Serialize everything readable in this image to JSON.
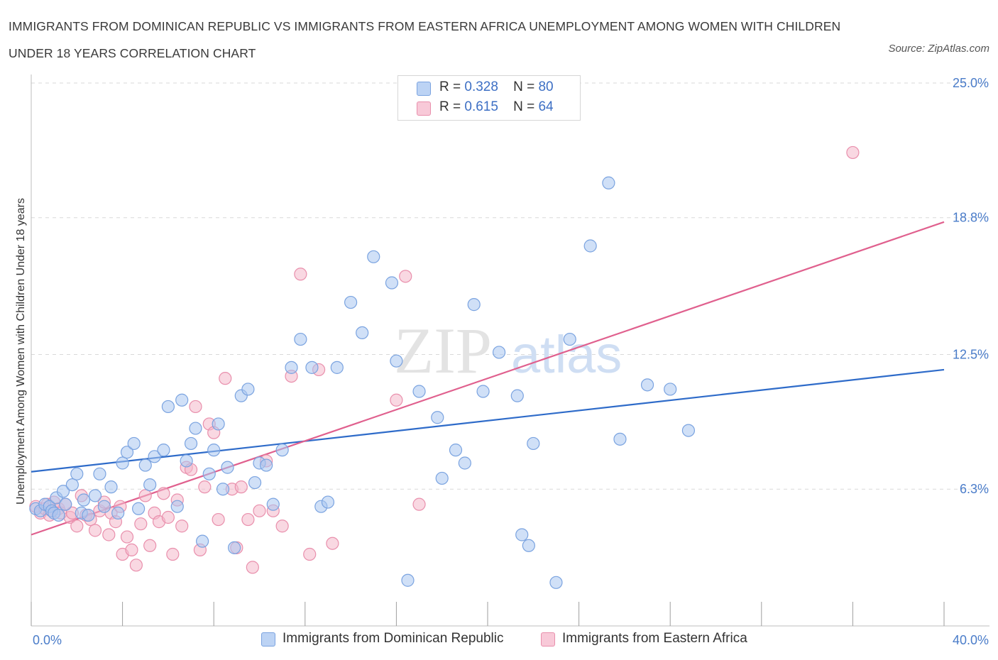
{
  "title": "IMMIGRANTS FROM DOMINICAN REPUBLIC VS IMMIGRANTS FROM EASTERN AFRICA UNEMPLOYMENT AMONG WOMEN WITH CHILDREN UNDER 18 YEARS CORRELATION CHART",
  "source": "Source: ZipAtlas.com",
  "watermark": {
    "zip": "ZIP",
    "atlas": "atlas"
  },
  "legend": {
    "rows": [
      {
        "r_label": "R =",
        "r_value": "0.328",
        "n_label": "N =",
        "n_value": "80"
      },
      {
        "r_label": "R =",
        "r_value": "0.615",
        "n_label": "N =",
        "n_value": "64"
      }
    ]
  },
  "colors": {
    "blue_fill": "#a9c6f0",
    "blue_stroke": "#7aa3e0",
    "blue_line": "#2e6bc9",
    "pink_fill": "#f4b8cb",
    "pink_stroke": "#e98fac",
    "pink_line": "#e0608e",
    "tick_text": "#4a7cc9",
    "grid": "#d9d9d9"
  },
  "chart_data": {
    "type": "scatter",
    "title": "IMMIGRANTS FROM DOMINICAN REPUBLIC VS IMMIGRANTS FROM EASTERN AFRICA UNEMPLOYMENT AMONG WOMEN WITH CHILDREN UNDER 18 YEARS CORRELATION CHART",
    "xlabel": "",
    "ylabel": "Unemployment Among Women with Children Under 18 years",
    "x_unit": "%",
    "y_unit": "%",
    "xlim": [
      0,
      40
    ],
    "ylim": [
      0,
      25
    ],
    "x_tick_labels": [
      "0.0%",
      "40.0%"
    ],
    "y_ticks": [
      6.3,
      12.5,
      18.8,
      25.0
    ],
    "y_tick_labels": [
      "6.3%",
      "12.5%",
      "18.8%",
      "25.0%"
    ],
    "grid": "horizontal dashed",
    "legend_position": "top-center",
    "series": [
      {
        "name": "Immigrants from Dominican Republic",
        "color": "#a9c6f0",
        "R": 0.328,
        "N": 80,
        "trend": {
          "x": [
            0,
            40
          ],
          "y": [
            7.1,
            11.8
          ]
        },
        "points": [
          [
            0.2,
            5.4
          ],
          [
            0.4,
            5.3
          ],
          [
            0.6,
            5.6
          ],
          [
            0.8,
            5.5
          ],
          [
            0.9,
            5.3
          ],
          [
            1.0,
            5.2
          ],
          [
            1.1,
            5.9
          ],
          [
            1.2,
            5.1
          ],
          [
            1.4,
            6.2
          ],
          [
            1.5,
            5.6
          ],
          [
            1.8,
            6.5
          ],
          [
            2.0,
            7.0
          ],
          [
            2.2,
            5.2
          ],
          [
            2.3,
            5.8
          ],
          [
            2.5,
            5.1
          ],
          [
            2.8,
            6.0
          ],
          [
            3.0,
            7.0
          ],
          [
            3.2,
            5.5
          ],
          [
            3.5,
            6.4
          ],
          [
            3.8,
            5.2
          ],
          [
            4.0,
            7.5
          ],
          [
            4.2,
            8.0
          ],
          [
            4.5,
            8.4
          ],
          [
            4.7,
            5.4
          ],
          [
            5.0,
            7.4
          ],
          [
            5.2,
            6.5
          ],
          [
            5.4,
            7.8
          ],
          [
            5.8,
            8.1
          ],
          [
            6.0,
            10.1
          ],
          [
            6.4,
            5.5
          ],
          [
            6.6,
            10.4
          ],
          [
            6.8,
            7.6
          ],
          [
            7.0,
            8.4
          ],
          [
            7.2,
            9.1
          ],
          [
            7.5,
            3.9
          ],
          [
            7.8,
            7.0
          ],
          [
            8.0,
            8.1
          ],
          [
            8.2,
            9.3
          ],
          [
            8.4,
            6.3
          ],
          [
            8.6,
            7.3
          ],
          [
            8.9,
            3.6
          ],
          [
            9.2,
            10.6
          ],
          [
            9.5,
            10.9
          ],
          [
            9.8,
            6.6
          ],
          [
            10.0,
            7.5
          ],
          [
            10.3,
            7.4
          ],
          [
            10.6,
            5.6
          ],
          [
            11.0,
            8.1
          ],
          [
            11.4,
            11.9
          ],
          [
            11.8,
            13.2
          ],
          [
            12.3,
            11.9
          ],
          [
            12.7,
            5.5
          ],
          [
            13.0,
            5.7
          ],
          [
            13.4,
            11.9
          ],
          [
            14.0,
            14.9
          ],
          [
            14.5,
            13.5
          ],
          [
            15.0,
            17.0
          ],
          [
            15.8,
            15.8
          ],
          [
            16.0,
            12.2
          ],
          [
            16.5,
            2.1
          ],
          [
            17.0,
            10.8
          ],
          [
            17.8,
            9.6
          ],
          [
            18.0,
            6.8
          ],
          [
            18.6,
            8.1
          ],
          [
            19.0,
            7.5
          ],
          [
            19.4,
            14.8
          ],
          [
            19.8,
            10.8
          ],
          [
            20.5,
            12.6
          ],
          [
            21.3,
            10.6
          ],
          [
            21.5,
            4.2
          ],
          [
            21.8,
            3.7
          ],
          [
            22.0,
            8.4
          ],
          [
            23.0,
            2.0
          ],
          [
            23.6,
            13.2
          ],
          [
            24.5,
            17.5
          ],
          [
            25.3,
            20.4
          ],
          [
            25.8,
            8.6
          ],
          [
            27.0,
            11.1
          ],
          [
            28.0,
            10.9
          ],
          [
            28.8,
            9.0
          ]
        ]
      },
      {
        "name": "Immigrants from Eastern Africa",
        "color": "#f4b8cb",
        "R": 0.615,
        "N": 64,
        "trend": {
          "x": [
            0,
            40
          ],
          "y": [
            4.2,
            18.6
          ]
        },
        "points": [
          [
            0.2,
            5.5
          ],
          [
            0.4,
            5.2
          ],
          [
            0.6,
            5.4
          ],
          [
            0.7,
            5.6
          ],
          [
            0.8,
            5.1
          ],
          [
            0.9,
            5.3
          ],
          [
            1.0,
            5.7
          ],
          [
            1.2,
            5.4
          ],
          [
            1.3,
            5.2
          ],
          [
            1.5,
            5.6
          ],
          [
            1.7,
            5.0
          ],
          [
            1.8,
            5.2
          ],
          [
            2.0,
            4.6
          ],
          [
            2.2,
            6.0
          ],
          [
            2.4,
            5.1
          ],
          [
            2.6,
            4.9
          ],
          [
            2.8,
            4.4
          ],
          [
            3.0,
            5.3
          ],
          [
            3.2,
            5.7
          ],
          [
            3.4,
            4.2
          ],
          [
            3.5,
            5.2
          ],
          [
            3.7,
            4.8
          ],
          [
            3.9,
            5.5
          ],
          [
            4.0,
            3.3
          ],
          [
            4.2,
            4.1
          ],
          [
            4.4,
            3.5
          ],
          [
            4.6,
            2.8
          ],
          [
            4.8,
            4.7
          ],
          [
            5.0,
            6.0
          ],
          [
            5.2,
            3.7
          ],
          [
            5.4,
            5.2
          ],
          [
            5.6,
            4.8
          ],
          [
            5.8,
            6.1
          ],
          [
            6.0,
            5.0
          ],
          [
            6.2,
            3.3
          ],
          [
            6.4,
            5.8
          ],
          [
            6.6,
            4.6
          ],
          [
            6.8,
            7.3
          ],
          [
            7.0,
            7.2
          ],
          [
            7.2,
            10.1
          ],
          [
            7.4,
            3.5
          ],
          [
            7.6,
            6.4
          ],
          [
            7.8,
            9.3
          ],
          [
            8.0,
            8.9
          ],
          [
            8.2,
            4.9
          ],
          [
            8.5,
            11.4
          ],
          [
            8.8,
            6.3
          ],
          [
            9.0,
            3.6
          ],
          [
            9.2,
            6.4
          ],
          [
            9.5,
            4.9
          ],
          [
            9.7,
            2.7
          ],
          [
            10.0,
            5.3
          ],
          [
            10.3,
            7.6
          ],
          [
            10.6,
            5.3
          ],
          [
            11.0,
            4.6
          ],
          [
            11.4,
            11.5
          ],
          [
            11.8,
            16.2
          ],
          [
            12.2,
            3.3
          ],
          [
            12.6,
            11.8
          ],
          [
            13.2,
            3.8
          ],
          [
            16.0,
            10.4
          ],
          [
            16.4,
            16.1
          ],
          [
            17.0,
            5.6
          ],
          [
            36.0,
            21.8
          ]
        ]
      }
    ]
  },
  "bottom_legend": {
    "blue": "Immigrants from Dominican Republic",
    "pink": "Immigrants from Eastern Africa"
  }
}
